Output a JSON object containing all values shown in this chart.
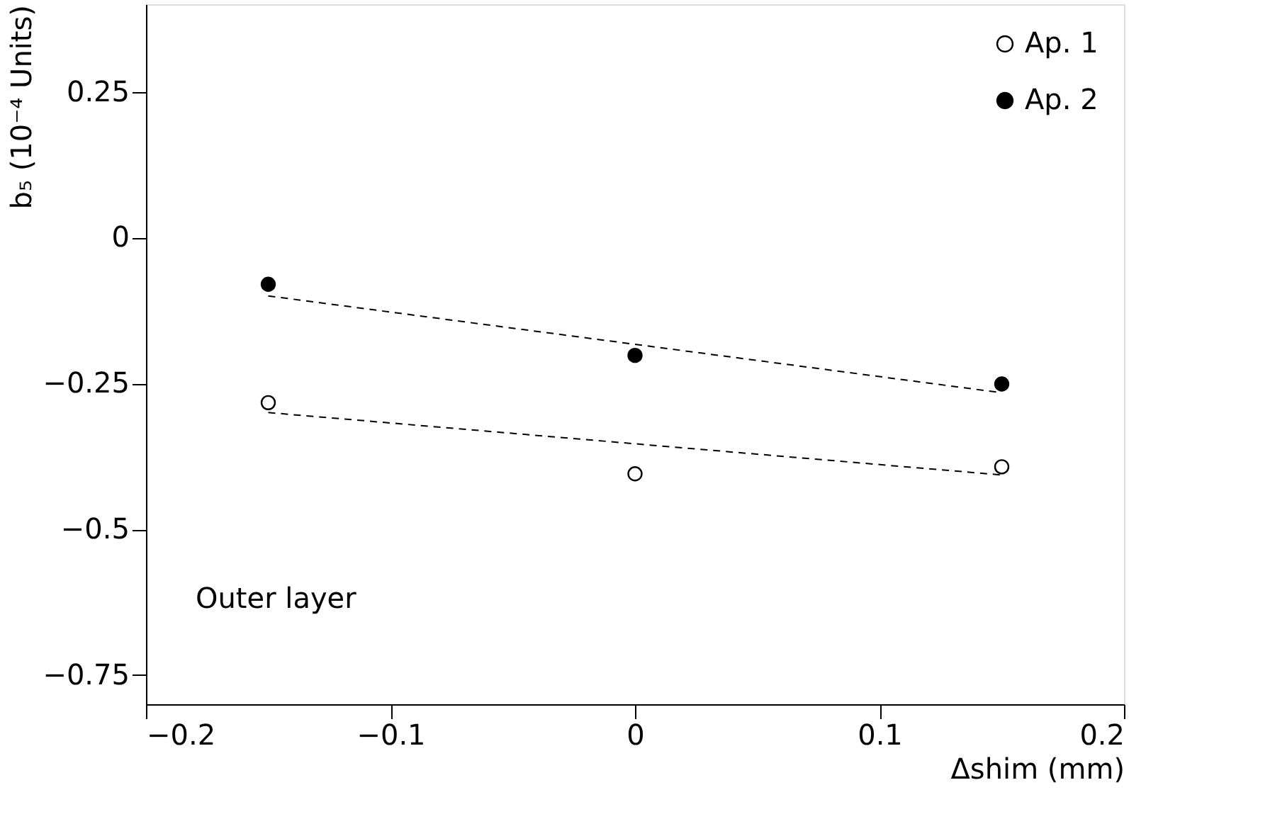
{
  "chart_data": {
    "type": "scatter",
    "xlabel": "Δshim (mm)",
    "ylabel": "b₅ (10⁻⁴ Units)",
    "xlim": [
      -0.2,
      0.2
    ],
    "ylim": [
      -0.8,
      0.4
    ],
    "xticks": [
      {
        "value": -0.2,
        "label": "−0.2"
      },
      {
        "value": -0.1,
        "label": "−0.1"
      },
      0,
      0.1,
      0.2
    ],
    "yticks": [
      {
        "value": -0.75,
        "label": "−0.75"
      },
      {
        "value": -0.5,
        "label": "−0.5"
      },
      {
        "value": -0.25,
        "label": "−0.25"
      },
      0,
      0.25
    ],
    "grid": false,
    "legend": "top right",
    "marker": "circle",
    "annotations": [
      "Outer layer"
    ],
    "series": [
      {
        "name": "Ap. 1",
        "color": "#000000",
        "x": [
          -0.15,
          0,
          0.15
        ],
        "values": [
          -0.283,
          -0.405,
          -0.393
        ]
      },
      {
        "name": "Ap. 2",
        "color": "#000000",
        "x": [
          -0.15,
          0,
          0.15
        ],
        "values": [
          -0.08,
          -0.202,
          -0.251
        ]
      },
      {
        "type": "line",
        "color": "#000000",
        "line_style": "dashed",
        "marker": "none",
        "x": [
          -0.15,
          0.15
        ],
        "values": [
          -0.3,
          -0.407
        ]
      },
      {
        "type": "line",
        "color": "#000000",
        "line_style": "dashed",
        "marker": "none",
        "x": [
          -0.15,
          0.15
        ],
        "values": [
          -0.1,
          -0.266
        ]
      }
    ]
  }
}
